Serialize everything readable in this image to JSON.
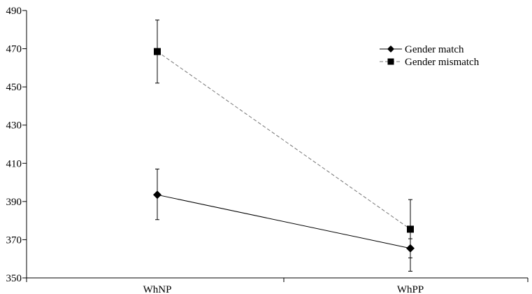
{
  "chart_data": {
    "type": "line",
    "categories": [
      "WhNP",
      "WhPP"
    ],
    "ylim": [
      350,
      490
    ],
    "yticks": [
      350,
      370,
      390,
      410,
      430,
      450,
      470,
      490
    ],
    "grid": false,
    "legend_position": "top-right",
    "series": [
      {
        "name": "Gender match",
        "values": [
          393.5,
          365.5
        ],
        "error_low": [
          380.5,
          360.5
        ],
        "error_high": [
          407.0,
          370.5
        ],
        "marker": "diamond",
        "line_style": "solid",
        "color": "#000000"
      },
      {
        "name": "Gender mismatch",
        "values": [
          468.5,
          375.5
        ],
        "error_low": [
          452.0,
          353.5
        ],
        "error_high": [
          485.0,
          391.0
        ],
        "marker": "square",
        "line_style": "dashed",
        "color": "#000000"
      }
    ]
  }
}
